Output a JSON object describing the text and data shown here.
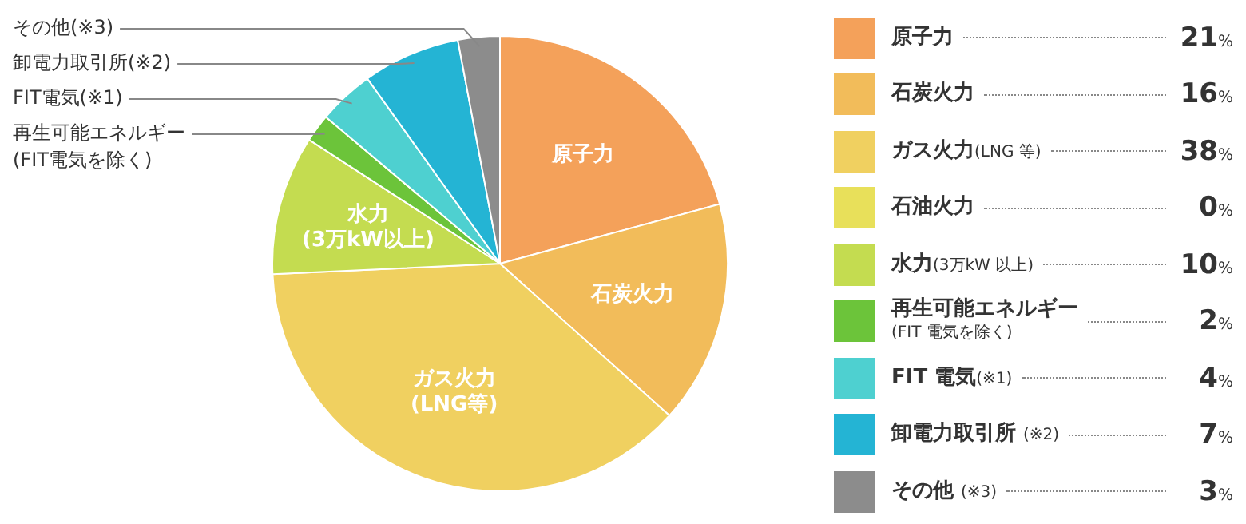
{
  "chart_data": {
    "type": "pie",
    "categories": [
      "原子力",
      "石炭火力",
      "ガス火力(LNG 等)",
      "石油火力",
      "水力(3万kW 以上)",
      "再生可能エネルギー\n(FIT 電気を除く)",
      "FIT 電気(※1)",
      "卸電力取引所 (※2)",
      "その他 (※3)"
    ],
    "values": [
      21,
      16,
      38,
      0,
      10,
      2,
      4,
      7,
      3
    ],
    "colors": [
      "#f4a15a",
      "#f2bc5a",
      "#f0d060",
      "#e8e05a",
      "#c4dc50",
      "#6cc43a",
      "#4ed0d0",
      "#24b4d4",
      "#8c8c8c"
    ],
    "value_labels": [
      "21%",
      "16%",
      "38%",
      "0%",
      "10%",
      "2%",
      "4%",
      "7%",
      "3%"
    ],
    "legend": "right",
    "annotations": [
      {
        "text": "原子力",
        "x": "原子力"
      },
      {
        "text": "石炭火力",
        "x": "石炭火力"
      },
      {
        "text": "ガス火力\n(LNG等)",
        "x": "ガス火力(LNG 等)"
      },
      {
        "text": "水力\n(3万kW以上)",
        "x": "水力(3万kW 以上)"
      },
      {
        "text": "再生可能エネルギー\n(FIT電気を除く)",
        "x": "再生可能エネルギー\n(FIT 電気を除く)"
      },
      {
        "text": "FIT電気(※1)",
        "x": "FIT 電気(※1)"
      },
      {
        "text": "卸電力取引所(※2)",
        "x": "卸電力取引所 (※2)"
      },
      {
        "text": "その他(※3)",
        "x": "その他 (※3)"
      }
    ]
  }
}
